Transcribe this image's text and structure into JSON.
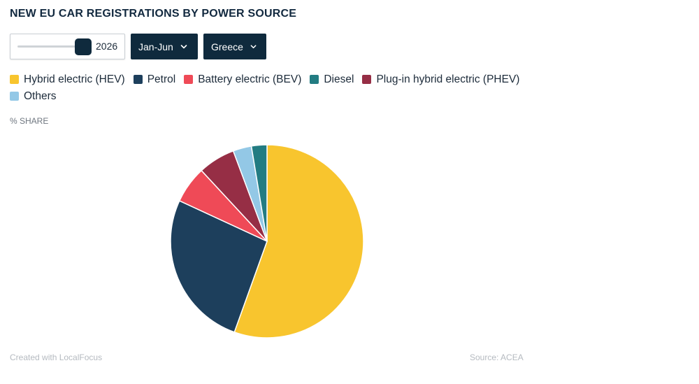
{
  "title": "NEW EU CAR REGISTRATIONS BY POWER SOURCE",
  "controls": {
    "year_value": "2026",
    "period_label": "Jan-Jun",
    "country_label": "Greece"
  },
  "axis_label": "% SHARE",
  "footer": {
    "credit": "Created with LocalFocus",
    "source": "Source:  ACEA"
  },
  "colors": {
    "accent": "#0f2a3d"
  },
  "icons": {
    "dropdown": "chevron-down-icon"
  },
  "chart_data": {
    "type": "pie",
    "unit": "% SHARE",
    "start_angle_deg": 0,
    "direction": "clockwise",
    "slices": [
      {
        "label": "Hybrid electric (HEV)",
        "value": 55.5,
        "color": "#f8c52e"
      },
      {
        "label": "Petrol",
        "value": 26.4,
        "color": "#1d3f5c"
      },
      {
        "label": "Battery electric (BEV)",
        "value": 6.2,
        "color": "#ef4a57"
      },
      {
        "label": "Plug-in hybrid electric (PHEV)",
        "value": 6.2,
        "color": "#962e45"
      },
      {
        "label": "Others",
        "value": 3.1,
        "color": "#93c8e6"
      },
      {
        "label": "Diesel",
        "value": 2.6,
        "color": "#227c82"
      }
    ],
    "legend_order": [
      "Hybrid electric (HEV)",
      "Petrol",
      "Battery electric (BEV)",
      "Diesel",
      "Plug-in hybrid electric (PHEV)",
      "Others"
    ],
    "legend_position": "top-left"
  }
}
